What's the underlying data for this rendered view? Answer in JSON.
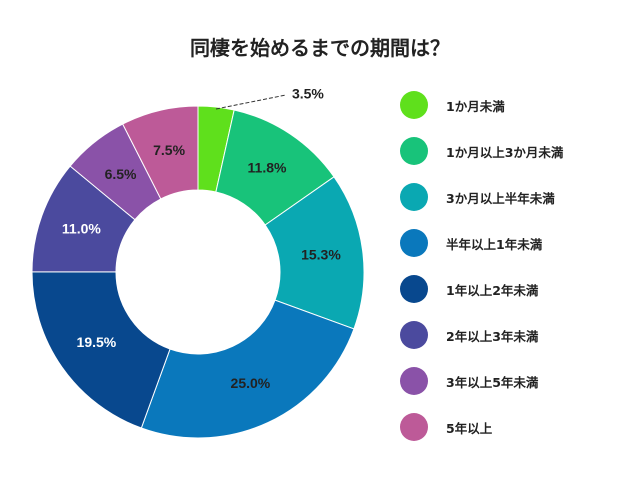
{
  "chart_data": {
    "type": "pie",
    "title": "同棲を始めるまでの期間は？",
    "categories": [
      "1か月未満",
      "1か月以上3か月未満",
      "3か月以上半年未満",
      "半年以上1年未満",
      "1年以上2年未満",
      "2年以上3年未満",
      "3年以上5年未満",
      "5年以上"
    ],
    "values": [
      3.5,
      11.8,
      15.3,
      25.0,
      19.5,
      11.0,
      6.5,
      7.5
    ],
    "labels": [
      "3.5%",
      "11.8%",
      "15.3%",
      "25.0%",
      "19.5%",
      "11.0%",
      "6.5%",
      "7.5%"
    ],
    "colors": [
      "#5fe01c",
      "#18c37a",
      "#0aa8b2",
      "#0a78bc",
      "#08488e",
      "#4b4a9e",
      "#8a52a8",
      "#bd5a98"
    ],
    "label_colors": [
      "#222222",
      "#222222",
      "#222222",
      "#222222",
      "#ffffff",
      "#ffffff",
      "#222222",
      "#222222"
    ],
    "legend_position": "right",
    "donut": true
  }
}
